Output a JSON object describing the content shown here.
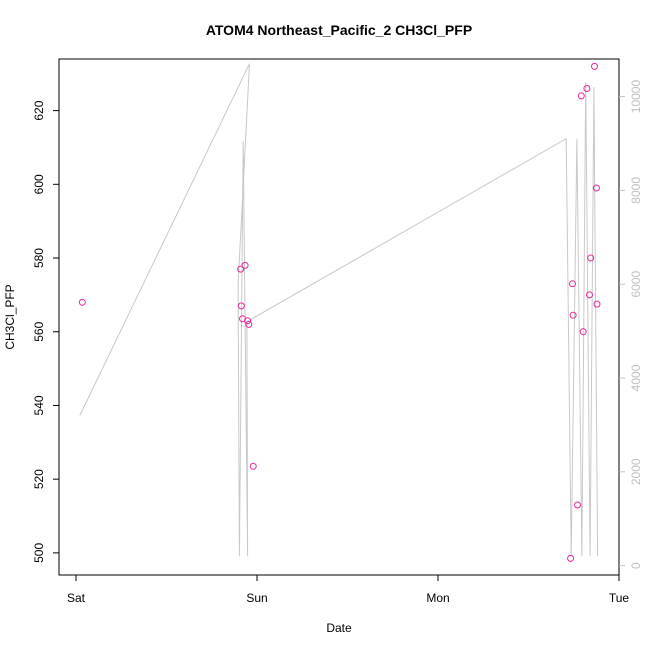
{
  "chart_data": {
    "type": "scatter",
    "title": "ATOM4 Northeast_Pacific_2 CH3Cl_PFP",
    "xlabel": "Date",
    "ylabel": "CH3Cl_PFP",
    "x_tick_labels": [
      "Sat",
      "Sun",
      "Mon",
      "Tue"
    ],
    "y_left": {
      "range": [
        494,
        634
      ],
      "ticks": [
        500,
        520,
        540,
        560,
        580,
        600,
        620
      ]
    },
    "y_right": {
      "range": [
        -200,
        10800
      ],
      "ticks": [
        0,
        2000,
        4000,
        6000,
        8000,
        10000
      ],
      "color": "#c0c0c0"
    },
    "x_range": [
      "Sat 00:00",
      "Tue 00:00"
    ],
    "grid": false,
    "series": [
      {
        "axis": "left",
        "marker": "circle",
        "color": "#e8279b",
        "points": [
          {
            "x": "Sat 00:50",
            "y": 568
          },
          {
            "x": "Sat 21:50",
            "y": 577
          },
          {
            "x": "Sat 21:55",
            "y": 567
          },
          {
            "x": "Sat 22:05",
            "y": 563.5
          },
          {
            "x": "Sat 22:25",
            "y": 578
          },
          {
            "x": "Sat 22:45",
            "y": 563
          },
          {
            "x": "Sat 22:55",
            "y": 562
          },
          {
            "x": "Sat 23:30",
            "y": 523.5
          },
          {
            "x": "Mon 17:35",
            "y": 498.5
          },
          {
            "x": "Mon 17:50",
            "y": 573
          },
          {
            "x": "Mon 17:55",
            "y": 564.5
          },
          {
            "x": "Mon 18:30",
            "y": 513
          },
          {
            "x": "Mon 19:00",
            "y": 624
          },
          {
            "x": "Mon 19:15",
            "y": 560
          },
          {
            "x": "Mon 19:45",
            "y": 626
          },
          {
            "x": "Mon 20:05",
            "y": 570
          },
          {
            "x": "Mon 20:15",
            "y": 580
          },
          {
            "x": "Mon 20:45",
            "y": 632
          },
          {
            "x": "Mon 21:00",
            "y": 599
          },
          {
            "x": "Mon 21:05",
            "y": 567.5
          }
        ]
      },
      {
        "axis": "right",
        "type": "line",
        "color": "#c8c8c8",
        "points": [
          {
            "x": "Sat 00:30",
            "y": 3200
          },
          {
            "x": "Sat 23:00",
            "y": 10700
          },
          {
            "x": "Sat 21:30",
            "y": 6000
          },
          {
            "x": "Sat 21:40",
            "y": 200
          },
          {
            "x": "Sat 22:10",
            "y": 9050
          },
          {
            "x": "Sat 22:45",
            "y": 200
          },
          {
            "x": "Sat 22:40",
            "y": 5200
          },
          {
            "x": "Mon 17:00",
            "y": 9100
          },
          {
            "x": "Mon 17:40",
            "y": 200
          },
          {
            "x": "Mon 18:25",
            "y": 9100
          },
          {
            "x": "Mon 19:05",
            "y": 200
          },
          {
            "x": "Mon 19:35",
            "y": 10300
          },
          {
            "x": "Mon 20:10",
            "y": 200
          },
          {
            "x": "Mon 20:40",
            "y": 10200
          },
          {
            "x": "Mon 21:10",
            "y": 200
          }
        ]
      }
    ]
  }
}
